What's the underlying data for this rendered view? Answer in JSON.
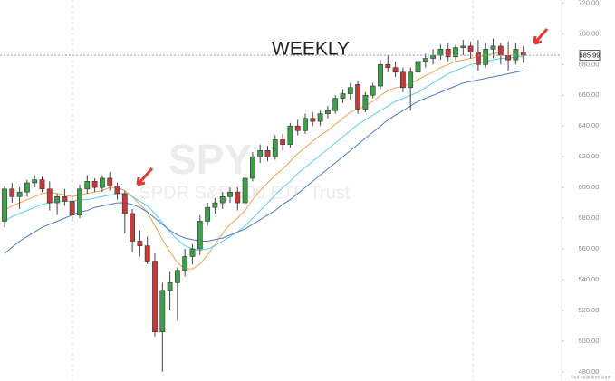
{
  "chart_data": {
    "type": "candlestick",
    "title": "WEEKLY",
    "watermark": "SPY",
    "watermark_subtitle": "SPDR S&P 500 ETF Trust",
    "footnote": "Your local time zone",
    "last_price": 685.99,
    "last_price_label": "685.99",
    "up_color": "#3f9e4a",
    "down_color": "#c43b3b",
    "grid": false,
    "ylim": [
      474,
      722
    ],
    "yticks": [
      {
        "value": 480,
        "label": "480.00"
      },
      {
        "value": 500,
        "label": "500.00"
      },
      {
        "value": 520,
        "label": "520.00"
      },
      {
        "value": 540,
        "label": "540.00"
      },
      {
        "value": 560,
        "label": "560.00"
      },
      {
        "value": 580,
        "label": "580.00"
      },
      {
        "value": 600,
        "label": "600.00"
      },
      {
        "value": 620,
        "label": "620.00"
      },
      {
        "value": 640,
        "label": "640.00"
      },
      {
        "value": 660,
        "label": "660.00"
      },
      {
        "value": 680,
        "label": "680.00"
      },
      {
        "value": 700,
        "label": "700.00"
      },
      {
        "value": 720,
        "label": "720.00"
      }
    ],
    "open": [
      578,
      599,
      594,
      597,
      603,
      605,
      599,
      590,
      594,
      591,
      582,
      599,
      604,
      600,
      606,
      601,
      596,
      583,
      565,
      562,
      552,
      506,
      533,
      538,
      546,
      555,
      560,
      578,
      587,
      590,
      594,
      597,
      590,
      606,
      620,
      624,
      620,
      631,
      628,
      640,
      637,
      645,
      643,
      648,
      650,
      658,
      661,
      667,
      651,
      660,
      666,
      680,
      678,
      675,
      665,
      675,
      682,
      684,
      686,
      690,
      685,
      691,
      692,
      688,
      680,
      690,
      692,
      686,
      683,
      688
    ],
    "high": [
      601,
      603,
      600,
      605,
      608,
      607,
      604,
      596,
      599,
      594,
      602,
      608,
      606,
      608,
      610,
      603,
      598,
      586,
      572,
      568,
      557,
      538,
      545,
      548,
      560,
      563,
      582,
      590,
      593,
      597,
      600,
      600,
      608,
      623,
      628,
      627,
      634,
      635,
      642,
      644,
      648,
      649,
      650,
      653,
      660,
      664,
      668,
      669,
      662,
      668,
      683,
      686,
      682,
      678,
      678,
      685,
      687,
      690,
      693,
      694,
      693,
      696,
      695,
      696,
      694,
      697,
      694,
      695,
      694,
      692
    ],
    "low": [
      574,
      590,
      586,
      594,
      600,
      597,
      585,
      582,
      588,
      578,
      580,
      596,
      597,
      597,
      598,
      592,
      570,
      558,
      555,
      550,
      503,
      480,
      520,
      513,
      542,
      550,
      556,
      575,
      583,
      586,
      590,
      585,
      588,
      604,
      616,
      617,
      618,
      624,
      626,
      634,
      635,
      640,
      640,
      645,
      648,
      655,
      657,
      648,
      649,
      658,
      664,
      675,
      672,
      662,
      650,
      672,
      678,
      680,
      683,
      682,
      683,
      686,
      684,
      676,
      678,
      684,
      680,
      676,
      680,
      681
    ],
    "close": [
      599,
      594,
      597,
      603,
      605,
      599,
      590,
      594,
      591,
      582,
      599,
      604,
      600,
      606,
      601,
      596,
      583,
      565,
      562,
      552,
      506,
      533,
      538,
      546,
      555,
      560,
      578,
      587,
      590,
      594,
      597,
      590,
      606,
      620,
      624,
      620,
      631,
      628,
      640,
      637,
      645,
      643,
      648,
      650,
      658,
      661,
      665,
      651,
      660,
      666,
      680,
      678,
      675,
      665,
      675,
      682,
      684,
      686,
      690,
      685,
      691,
      692,
      688,
      680,
      690,
      692,
      686,
      683,
      690,
      686
    ],
    "series": [
      {
        "color": "#f0a04b",
        "values": [
          585,
          588,
          590,
          592,
          594,
          596,
          597,
          596,
          595,
          594,
          595,
          596,
          597,
          598,
          600,
          600,
          598,
          594,
          589,
          584,
          575,
          566,
          558,
          551,
          547,
          547,
          550,
          556,
          563,
          570,
          576,
          580,
          585,
          592,
          598,
          603,
          608,
          612,
          617,
          622,
          626,
          630,
          634,
          637,
          641,
          645,
          649,
          651,
          653,
          656,
          660,
          663,
          665,
          666,
          668,
          670,
          673,
          675,
          678,
          680,
          682,
          683,
          684,
          685,
          686,
          687,
          688,
          688,
          688,
          688
        ]
      },
      {
        "color": "#5ccfe0",
        "values": [
          578,
          581,
          583,
          585,
          587,
          589,
          590,
          591,
          591,
          591,
          592,
          592,
          593,
          594,
          595,
          596,
          596,
          594,
          591,
          588,
          583,
          577,
          571,
          566,
          562,
          560,
          559,
          560,
          562,
          565,
          568,
          571,
          575,
          580,
          585,
          590,
          595,
          600,
          604,
          609,
          613,
          617,
          621,
          625,
          629,
          633,
          637,
          641,
          644,
          647,
          650,
          653,
          656,
          658,
          660,
          662,
          665,
          668,
          671,
          674,
          676,
          678,
          680,
          681,
          682,
          683,
          684,
          684,
          685,
          685
        ]
      },
      {
        "color": "#4a7bc8",
        "values": [
          557,
          561,
          565,
          568,
          571,
          574,
          576,
          578,
          580,
          582,
          584,
          585,
          587,
          588,
          589,
          590,
          590,
          589,
          587,
          584,
          580,
          576,
          572,
          569,
          567,
          566,
          565,
          565,
          566,
          567,
          569,
          571,
          573,
          576,
          579,
          582,
          585,
          589,
          592,
          596,
          600,
          604,
          608,
          612,
          616,
          620,
          624,
          628,
          632,
          636,
          640,
          644,
          647,
          650,
          653,
          656,
          658,
          660,
          662,
          664,
          666,
          668,
          669,
          670,
          671,
          672,
          673,
          674,
          675,
          676
        ]
      }
    ]
  }
}
